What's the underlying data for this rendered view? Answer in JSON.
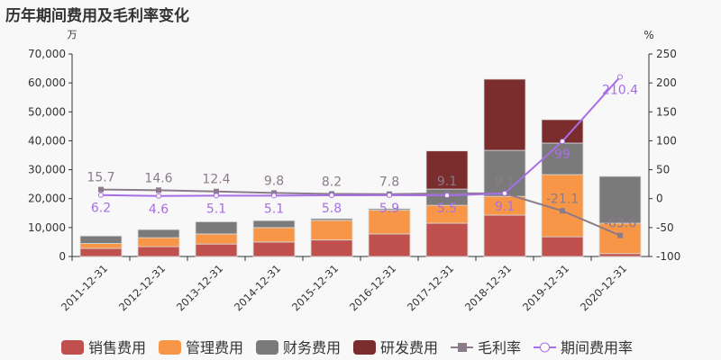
{
  "chart_data": {
    "type": "bar",
    "title": "历年期间费用及毛利率变化",
    "ylabel_left": "万",
    "ylabel_right": "%",
    "ylim_left": [
      0,
      70000
    ],
    "ylim_right": [
      -100,
      250
    ],
    "yticks_left": [
      "0",
      "10,000",
      "20,000",
      "30,000",
      "40,000",
      "50,000",
      "60,000",
      "70,000"
    ],
    "yticks_right": [
      "-100",
      "-50",
      "0",
      "50",
      "100",
      "150",
      "200",
      "250"
    ],
    "categories": [
      "2011-12-31",
      "2012-12-31",
      "2013-12-31",
      "2014-12-31",
      "2015-12-31",
      "2016-12-31",
      "2017-12-31",
      "2018-12-31",
      "2019-12-31",
      "2020-12-31"
    ],
    "series": [
      {
        "name": "销售费用",
        "type": "bar",
        "color": "#c0504d",
        "values": [
          2800,
          3400,
          4300,
          5000,
          5700,
          7800,
          11500,
          14300,
          6800,
          1000
        ]
      },
      {
        "name": "管理费用",
        "type": "bar",
        "color": "#f79646",
        "values": [
          1700,
          3100,
          3500,
          5000,
          6800,
          8200,
          6200,
          6500,
          21500,
          10500
        ]
      },
      {
        "name": "财务费用",
        "type": "bar",
        "color": "#7a7a7a",
        "values": [
          2600,
          2800,
          4200,
          2400,
          600,
          500,
          5600,
          15900,
          10900,
          16200
        ]
      },
      {
        "name": "研发费用",
        "type": "bar",
        "color": "#7b2c2c",
        "values": [
          0,
          0,
          0,
          0,
          0,
          0,
          13200,
          24600,
          8100,
          0
        ]
      },
      {
        "name": "毛利率",
        "type": "line",
        "color": "#8b7b8b",
        "values": [
          15.7,
          14.6,
          12.4,
          9.8,
          8.2,
          7.8,
          9.1,
          9.1,
          -21.1,
          -63.6
        ],
        "labels": [
          "15.7",
          "14.6",
          "12.4",
          "9.8",
          "8.2",
          "7.8",
          "9.1",
          "9.1",
          "-21.1",
          "-63.6"
        ]
      },
      {
        "name": "期间费用率",
        "type": "line",
        "color": "#a86ee6",
        "values": [
          6.2,
          4.6,
          5.1,
          5.1,
          5.8,
          5.9,
          5.5,
          9.1,
          99,
          210.4
        ],
        "labels": [
          "6.2",
          "4.6",
          "5.1",
          "5.1",
          "5.8",
          "5.9",
          "5.5",
          "9.1",
          "99",
          "210.4"
        ]
      }
    ]
  }
}
